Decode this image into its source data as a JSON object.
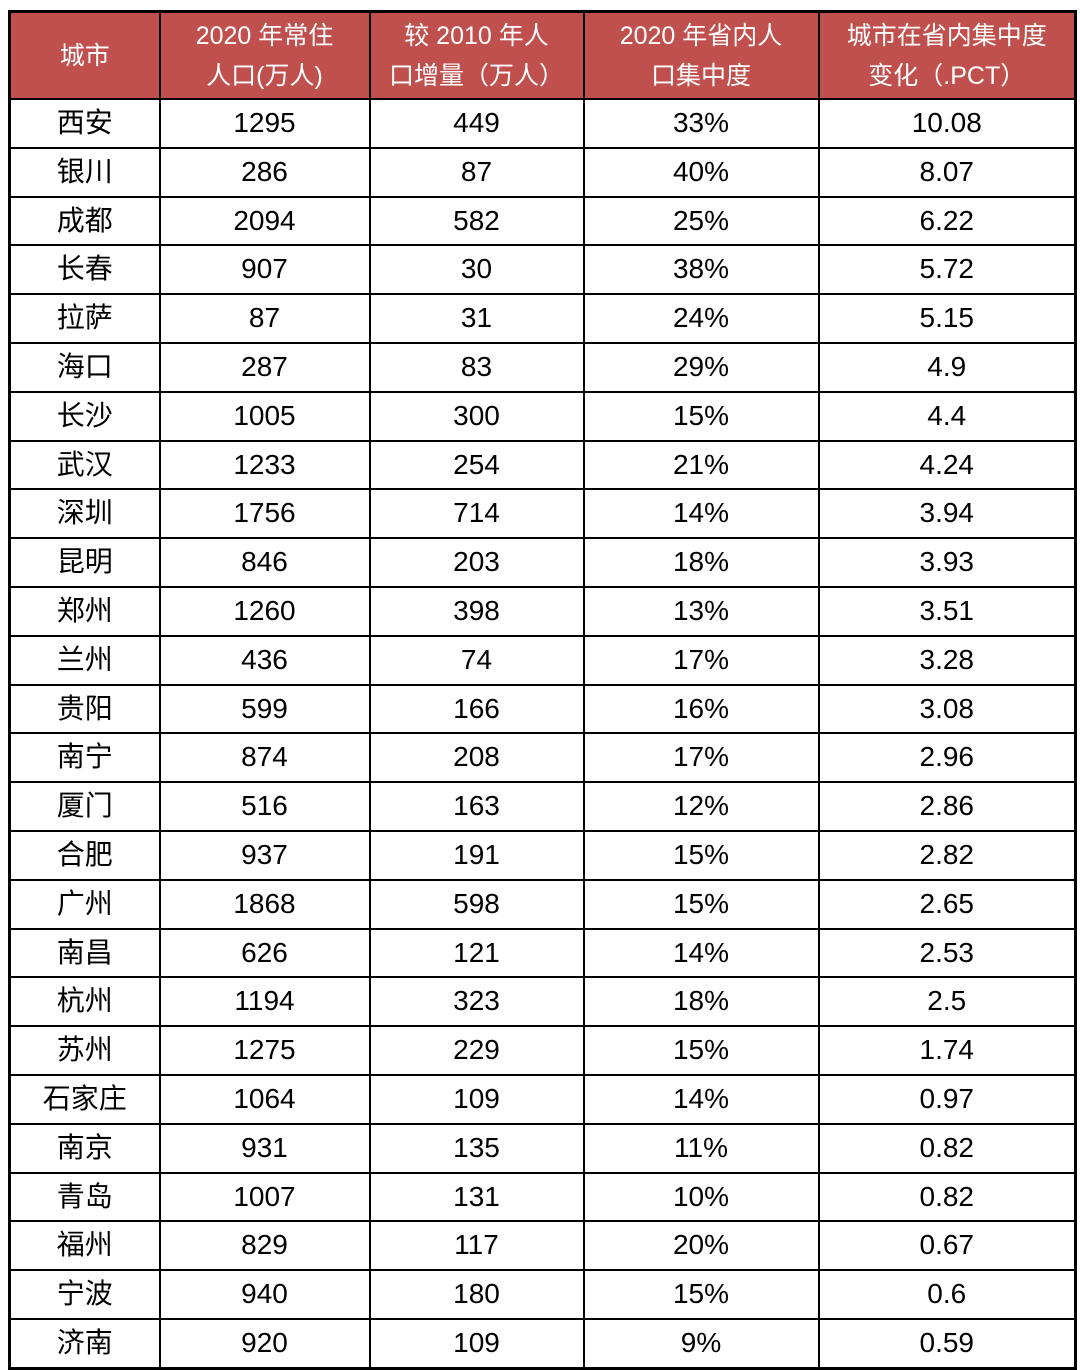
{
  "colors": {
    "header_bg": "#C0504D",
    "header_fg": "#FFFFFF",
    "cell_fg": "#000000",
    "border": "#000000"
  },
  "table": {
    "columns": [
      {
        "label": "城市"
      },
      {
        "label": "2020 年常住\n人口(万人)"
      },
      {
        "label": "较 2010 年人\n口增量（万人）"
      },
      {
        "label": "2020 年省内人\n口集中度"
      },
      {
        "label": "城市在省内集中度\n变化（.PCT）"
      }
    ],
    "rows": [
      [
        "西安",
        "1295",
        "449",
        "33%",
        "10.08"
      ],
      [
        "银川",
        "286",
        "87",
        "40%",
        "8.07"
      ],
      [
        "成都",
        "2094",
        "582",
        "25%",
        "6.22"
      ],
      [
        "长春",
        "907",
        "30",
        "38%",
        "5.72"
      ],
      [
        "拉萨",
        "87",
        "31",
        "24%",
        "5.15"
      ],
      [
        "海口",
        "287",
        "83",
        "29%",
        "4.9"
      ],
      [
        "长沙",
        "1005",
        "300",
        "15%",
        "4.4"
      ],
      [
        "武汉",
        "1233",
        "254",
        "21%",
        "4.24"
      ],
      [
        "深圳",
        "1756",
        "714",
        "14%",
        "3.94"
      ],
      [
        "昆明",
        "846",
        "203",
        "18%",
        "3.93"
      ],
      [
        "郑州",
        "1260",
        "398",
        "13%",
        "3.51"
      ],
      [
        "兰州",
        "436",
        "74",
        "17%",
        "3.28"
      ],
      [
        "贵阳",
        "599",
        "166",
        "16%",
        "3.08"
      ],
      [
        "南宁",
        "874",
        "208",
        "17%",
        "2.96"
      ],
      [
        "厦门",
        "516",
        "163",
        "12%",
        "2.86"
      ],
      [
        "合肥",
        "937",
        "191",
        "15%",
        "2.82"
      ],
      [
        "广州",
        "1868",
        "598",
        "15%",
        "2.65"
      ],
      [
        "南昌",
        "626",
        "121",
        "14%",
        "2.53"
      ],
      [
        "杭州",
        "1194",
        "323",
        "18%",
        "2.5"
      ],
      [
        "苏州",
        "1275",
        "229",
        "15%",
        "1.74"
      ],
      [
        "石家庄",
        "1064",
        "109",
        "14%",
        "0.97"
      ],
      [
        "南京",
        "931",
        "135",
        "11%",
        "0.82"
      ],
      [
        "青岛",
        "1007",
        "131",
        "10%",
        "0.82"
      ],
      [
        "福州",
        "829",
        "117",
        "20%",
        "0.67"
      ],
      [
        "宁波",
        "940",
        "180",
        "15%",
        "0.6"
      ],
      [
        "济南",
        "920",
        "109",
        "9%",
        "0.59"
      ]
    ]
  },
  "chart_data": {
    "type": "table",
    "title": "",
    "columns": [
      "城市",
      "2020 年常住人口(万人)",
      "较 2010 年人口增量（万人）",
      "2020 年省内人口集中度",
      "城市在省内集中度变化（.PCT）"
    ],
    "rows": [
      {
        "city": "西安",
        "pop_2020": 1295,
        "increase_vs_2010": 449,
        "concentration_2020": "33%",
        "concentration_change_pct": 10.08
      },
      {
        "city": "银川",
        "pop_2020": 286,
        "increase_vs_2010": 87,
        "concentration_2020": "40%",
        "concentration_change_pct": 8.07
      },
      {
        "city": "成都",
        "pop_2020": 2094,
        "increase_vs_2010": 582,
        "concentration_2020": "25%",
        "concentration_change_pct": 6.22
      },
      {
        "city": "长春",
        "pop_2020": 907,
        "increase_vs_2010": 30,
        "concentration_2020": "38%",
        "concentration_change_pct": 5.72
      },
      {
        "city": "拉萨",
        "pop_2020": 87,
        "increase_vs_2010": 31,
        "concentration_2020": "24%",
        "concentration_change_pct": 5.15
      },
      {
        "city": "海口",
        "pop_2020": 287,
        "increase_vs_2010": 83,
        "concentration_2020": "29%",
        "concentration_change_pct": 4.9
      },
      {
        "city": "长沙",
        "pop_2020": 1005,
        "increase_vs_2010": 300,
        "concentration_2020": "15%",
        "concentration_change_pct": 4.4
      },
      {
        "city": "武汉",
        "pop_2020": 1233,
        "increase_vs_2010": 254,
        "concentration_2020": "21%",
        "concentration_change_pct": 4.24
      },
      {
        "city": "深圳",
        "pop_2020": 1756,
        "increase_vs_2010": 714,
        "concentration_2020": "14%",
        "concentration_change_pct": 3.94
      },
      {
        "city": "昆明",
        "pop_2020": 846,
        "increase_vs_2010": 203,
        "concentration_2020": "18%",
        "concentration_change_pct": 3.93
      },
      {
        "city": "郑州",
        "pop_2020": 1260,
        "increase_vs_2010": 398,
        "concentration_2020": "13%",
        "concentration_change_pct": 3.51
      },
      {
        "city": "兰州",
        "pop_2020": 436,
        "increase_vs_2010": 74,
        "concentration_2020": "17%",
        "concentration_change_pct": 3.28
      },
      {
        "city": "贵阳",
        "pop_2020": 599,
        "increase_vs_2010": 166,
        "concentration_2020": "16%",
        "concentration_change_pct": 3.08
      },
      {
        "city": "南宁",
        "pop_2020": 874,
        "increase_vs_2010": 208,
        "concentration_2020": "17%",
        "concentration_change_pct": 2.96
      },
      {
        "city": "厦门",
        "pop_2020": 516,
        "increase_vs_2010": 163,
        "concentration_2020": "12%",
        "concentration_change_pct": 2.86
      },
      {
        "city": "合肥",
        "pop_2020": 937,
        "increase_vs_2010": 191,
        "concentration_2020": "15%",
        "concentration_change_pct": 2.82
      },
      {
        "city": "广州",
        "pop_2020": 1868,
        "increase_vs_2010": 598,
        "concentration_2020": "15%",
        "concentration_change_pct": 2.65
      },
      {
        "city": "南昌",
        "pop_2020": 626,
        "increase_vs_2010": 121,
        "concentration_2020": "14%",
        "concentration_change_pct": 2.53
      },
      {
        "city": "杭州",
        "pop_2020": 1194,
        "increase_vs_2010": 323,
        "concentration_2020": "18%",
        "concentration_change_pct": 2.5
      },
      {
        "city": "苏州",
        "pop_2020": 1275,
        "increase_vs_2010": 229,
        "concentration_2020": "15%",
        "concentration_change_pct": 1.74
      },
      {
        "city": "石家庄",
        "pop_2020": 1064,
        "increase_vs_2010": 109,
        "concentration_2020": "14%",
        "concentration_change_pct": 0.97
      },
      {
        "city": "南京",
        "pop_2020": 931,
        "increase_vs_2010": 135,
        "concentration_2020": "11%",
        "concentration_change_pct": 0.82
      },
      {
        "city": "青岛",
        "pop_2020": 1007,
        "increase_vs_2010": 131,
        "concentration_2020": "10%",
        "concentration_change_pct": 0.82
      },
      {
        "city": "福州",
        "pop_2020": 829,
        "increase_vs_2010": 117,
        "concentration_2020": "20%",
        "concentration_change_pct": 0.67
      },
      {
        "city": "宁波",
        "pop_2020": 940,
        "increase_vs_2010": 180,
        "concentration_2020": "15%",
        "concentration_change_pct": 0.6
      },
      {
        "city": "济南",
        "pop_2020": 920,
        "increase_vs_2010": 109,
        "concentration_2020": "9%",
        "concentration_change_pct": 0.59
      }
    ]
  }
}
